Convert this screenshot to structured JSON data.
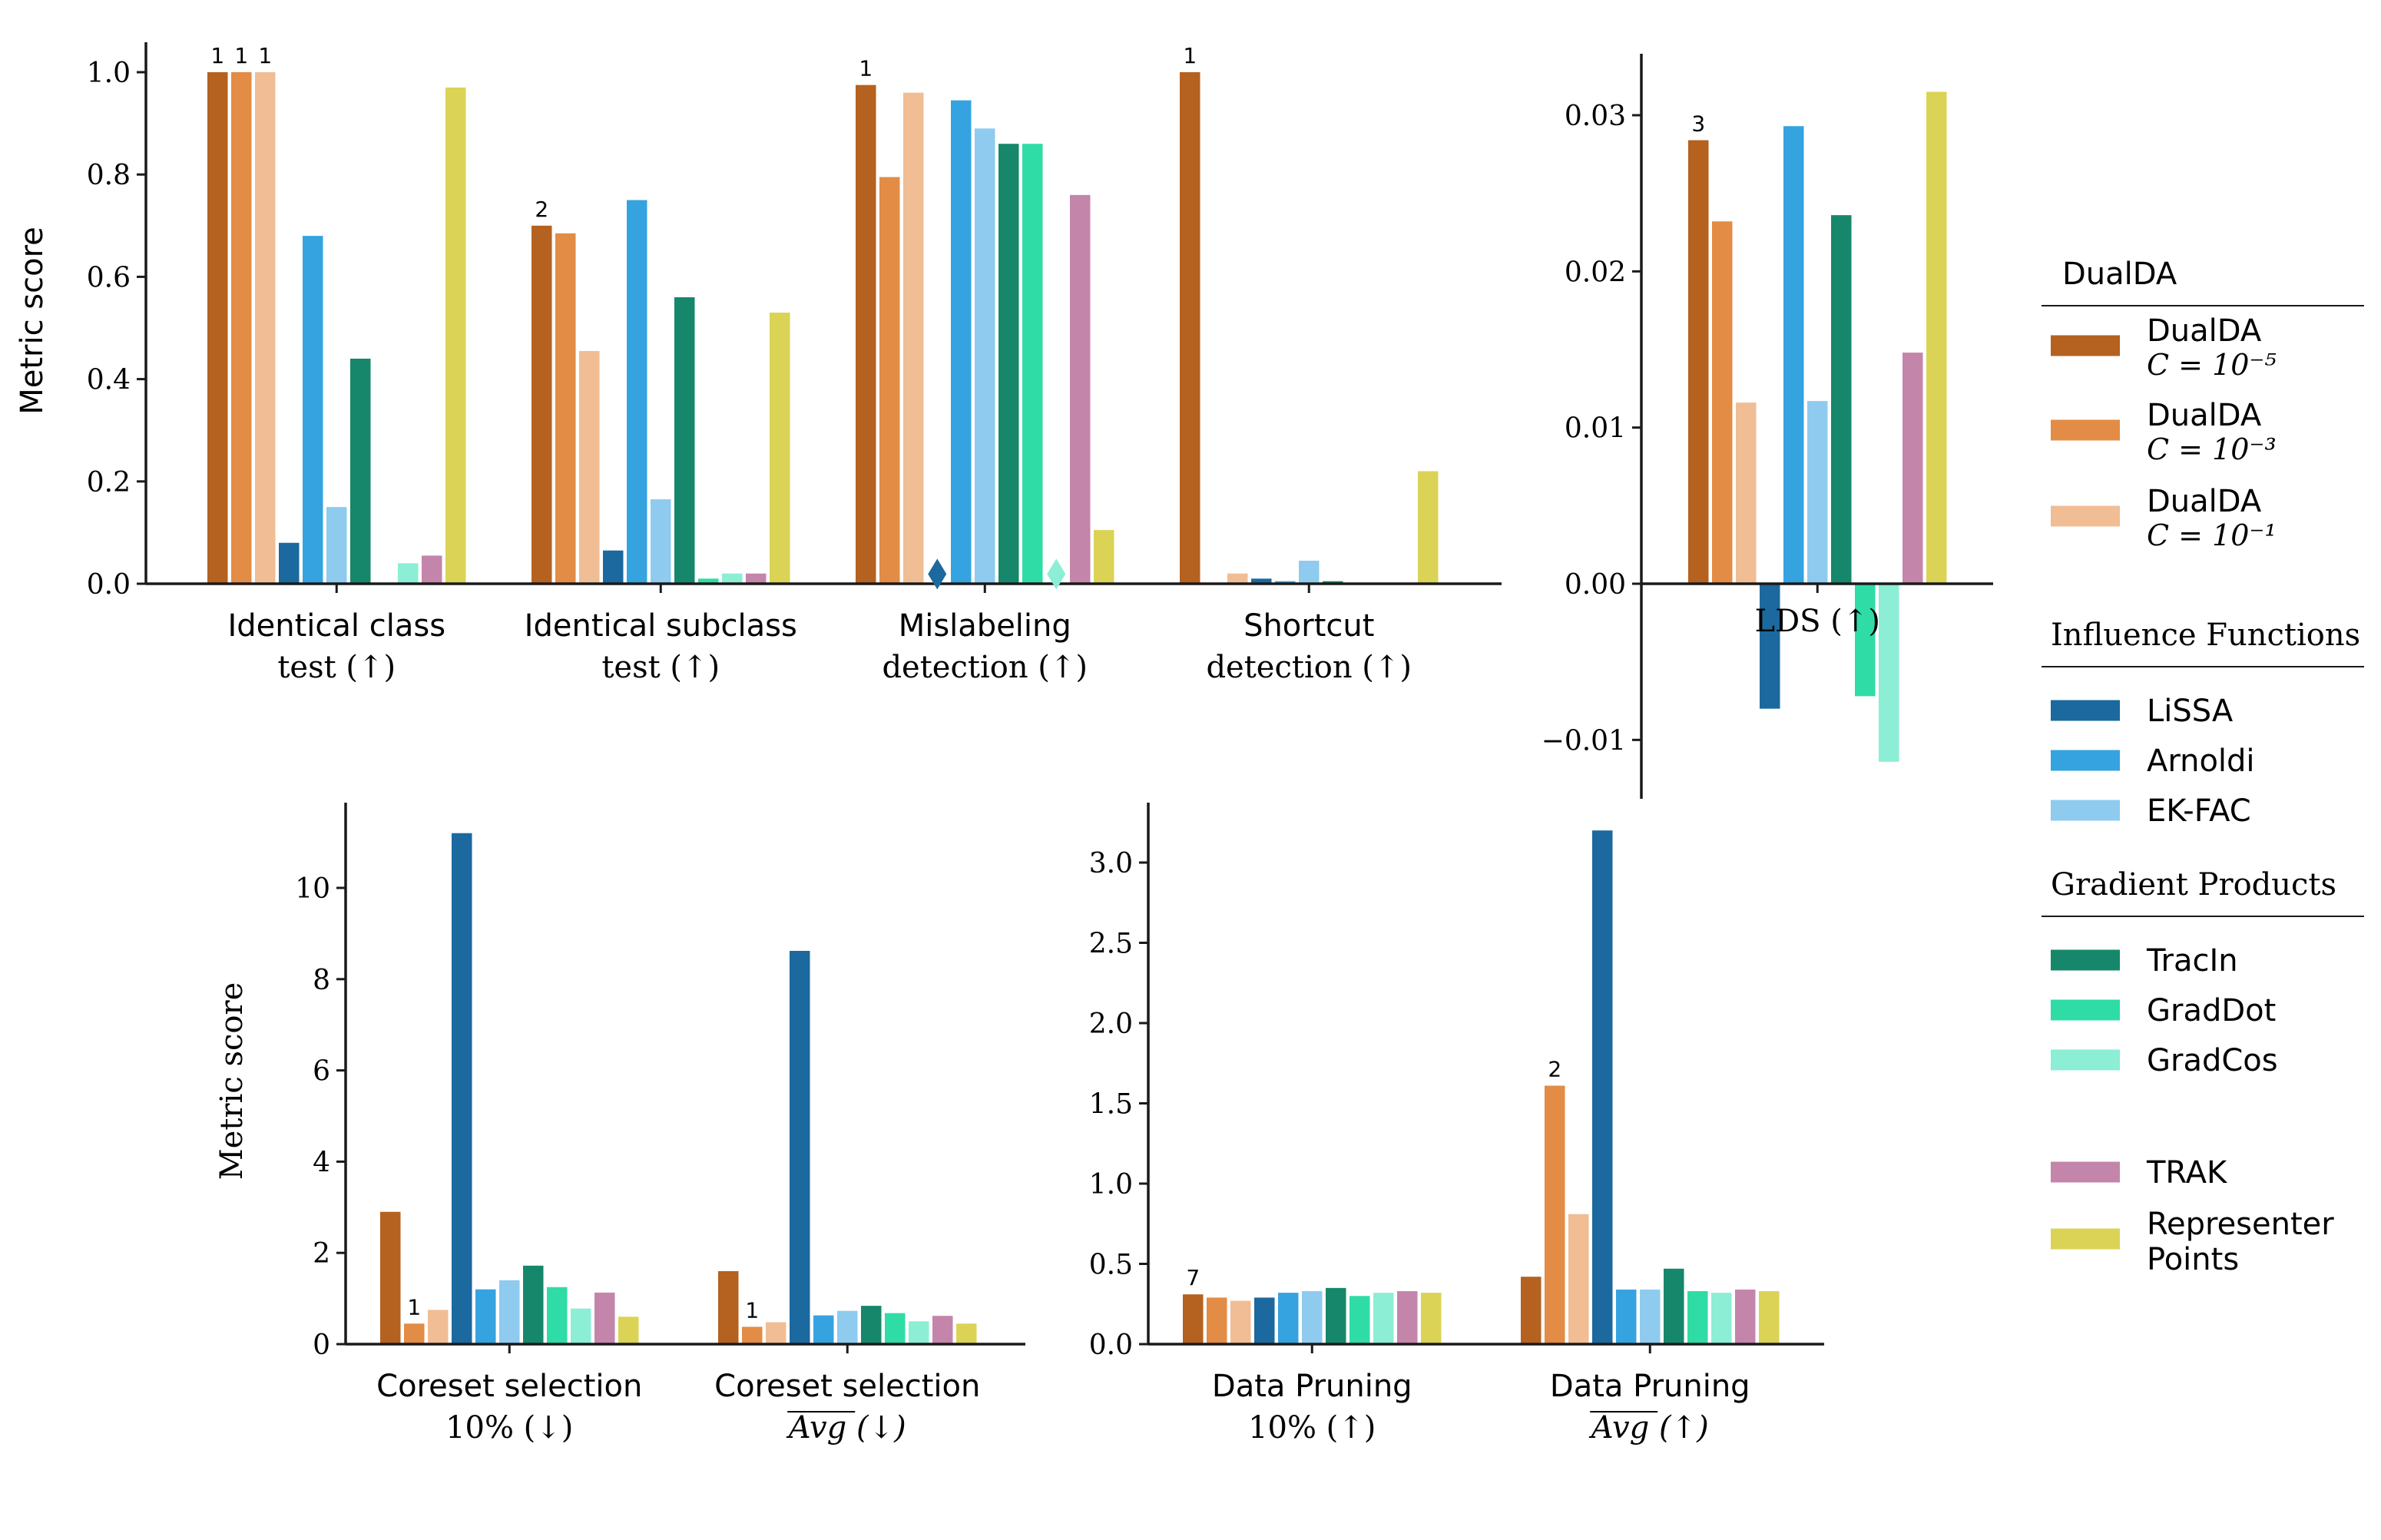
{
  "series_styles": [
    {
      "name": "DualDA",
      "sub": "C = 10⁻⁵",
      "color": "#b5611f"
    },
    {
      "name": "DualDA",
      "sub": "C = 10⁻³",
      "color": "#e28c45"
    },
    {
      "name": "DualDA",
      "sub": "C = 10⁻¹",
      "color": "#f0bd94"
    },
    {
      "name": "LiSSA",
      "color": "#1b699e"
    },
    {
      "name": "Arnoldi",
      "color": "#35a3e0"
    },
    {
      "name": "EK-FAC",
      "color": "#8ecbef"
    },
    {
      "name": "TracIn",
      "color": "#16876a"
    },
    {
      "name": "GradDot",
      "color": "#2fdca6"
    },
    {
      "name": "GradCos",
      "color": "#8ceed4"
    },
    {
      "name": "TRAK",
      "color": "#c485ab"
    },
    {
      "name": "Representer Points",
      "color": "#dbd355"
    }
  ],
  "legend": {
    "groups": [
      {
        "title": "DualDA",
        "items": [
          0,
          1,
          2
        ]
      },
      {
        "title": "Influence Functions",
        "items": [
          3,
          4,
          5
        ]
      },
      {
        "title": "Gradient Products",
        "items": [
          6,
          7,
          8
        ]
      },
      {
        "title": "",
        "items": [
          9,
          10
        ]
      }
    ]
  },
  "chart_data": [
    {
      "type": "bar",
      "ylabel": "Metric score",
      "ylim": [
        0,
        1.0
      ],
      "yticks": [
        "0.0",
        "0.2",
        "0.4",
        "0.6",
        "0.8",
        "1.0"
      ],
      "categories": [
        [
          "Identical class",
          "test (↑)"
        ],
        [
          "Identical subclass",
          "test (↑)"
        ],
        [
          "Mislabeling",
          "detection (↑)"
        ],
        [
          "Shortcut",
          "detection (↑)"
        ]
      ],
      "values": [
        [
          1.0,
          1.0,
          1.0,
          0.08,
          0.68,
          0.15,
          0.44,
          null,
          0.04,
          0.055,
          0.97
        ],
        [
          0.7,
          0.685,
          0.455,
          0.065,
          0.75,
          0.165,
          0.56,
          0.01,
          0.02,
          0.02,
          0.53
        ],
        [
          0.975,
          0.795,
          0.96,
          null,
          0.945,
          0.89,
          0.86,
          0.86,
          null,
          0.76,
          0.105
        ],
        [
          1.0,
          0.0,
          0.02,
          0.01,
          0.005,
          0.045,
          0.005,
          0.0,
          0.0,
          0.0,
          0.22
        ]
      ],
      "markers": [
        {
          "category": 2,
          "series": 3,
          "value": 0.04
        },
        {
          "category": 2,
          "series": 8,
          "value": 0.04
        }
      ],
      "rank_labels": [
        {
          "category": 0,
          "series": 0,
          "text": "1"
        },
        {
          "category": 0,
          "series": 1,
          "text": "1"
        },
        {
          "category": 0,
          "series": 2,
          "text": "1"
        },
        {
          "category": 1,
          "series": 0,
          "text": "2"
        },
        {
          "category": 2,
          "series": 0,
          "text": "1"
        },
        {
          "category": 3,
          "series": 0,
          "text": "1"
        }
      ]
    },
    {
      "type": "bar",
      "ylabel": "",
      "ylim": [
        -0.013,
        0.034
      ],
      "yticks": [
        "−0.01",
        "0.00",
        "0.01",
        "0.02",
        "0.03"
      ],
      "categories": [
        [
          "LDS (↑)"
        ]
      ],
      "values": [
        [
          0.0284,
          0.0232,
          0.0116,
          -0.008,
          0.0293,
          0.0117,
          0.0236,
          -0.0072,
          -0.0114,
          0.0148,
          0.0315
        ]
      ],
      "rank_labels": [
        {
          "category": 0,
          "series": 0,
          "text": "3"
        }
      ]
    },
    {
      "type": "bar",
      "ylabel": "Metric score",
      "ylim": [
        0,
        11.5
      ],
      "yticks": [
        "0",
        "2",
        "4",
        "6",
        "8",
        "10"
      ],
      "categories": [
        [
          "Coreset selection",
          "10% (↓)"
        ],
        [
          "Coreset selection",
          "Avg (↓)"
        ]
      ],
      "values": [
        [
          2.9,
          0.45,
          0.75,
          11.2,
          1.2,
          1.4,
          1.72,
          1.25,
          0.78,
          1.13,
          0.6
        ],
        [
          1.6,
          0.38,
          0.48,
          8.62,
          0.63,
          0.73,
          0.84,
          0.68,
          0.5,
          0.62,
          0.45
        ]
      ],
      "rank_labels": [
        {
          "category": 0,
          "series": 1,
          "text": "1"
        },
        {
          "category": 1,
          "series": 1,
          "text": "1"
        }
      ]
    },
    {
      "type": "bar",
      "ylabel": "",
      "ylim": [
        0,
        3.3
      ],
      "yticks": [
        "0.0",
        "0.5",
        "1.0",
        "1.5",
        "2.0",
        "2.5",
        "3.0"
      ],
      "categories": [
        [
          "Data Pruning",
          "10% (↑)"
        ],
        [
          "Data Pruning",
          "Avg (↑)"
        ]
      ],
      "values": [
        [
          0.31,
          0.29,
          0.27,
          0.29,
          0.32,
          0.33,
          0.35,
          0.3,
          0.32,
          0.33,
          0.32
        ],
        [
          0.42,
          1.61,
          0.81,
          3.2,
          0.34,
          0.34,
          0.47,
          0.33,
          0.32,
          0.34,
          0.33
        ]
      ],
      "rank_labels": [
        {
          "category": 0,
          "series": 0,
          "text": "7"
        },
        {
          "category": 1,
          "series": 1,
          "text": "2"
        }
      ]
    }
  ]
}
